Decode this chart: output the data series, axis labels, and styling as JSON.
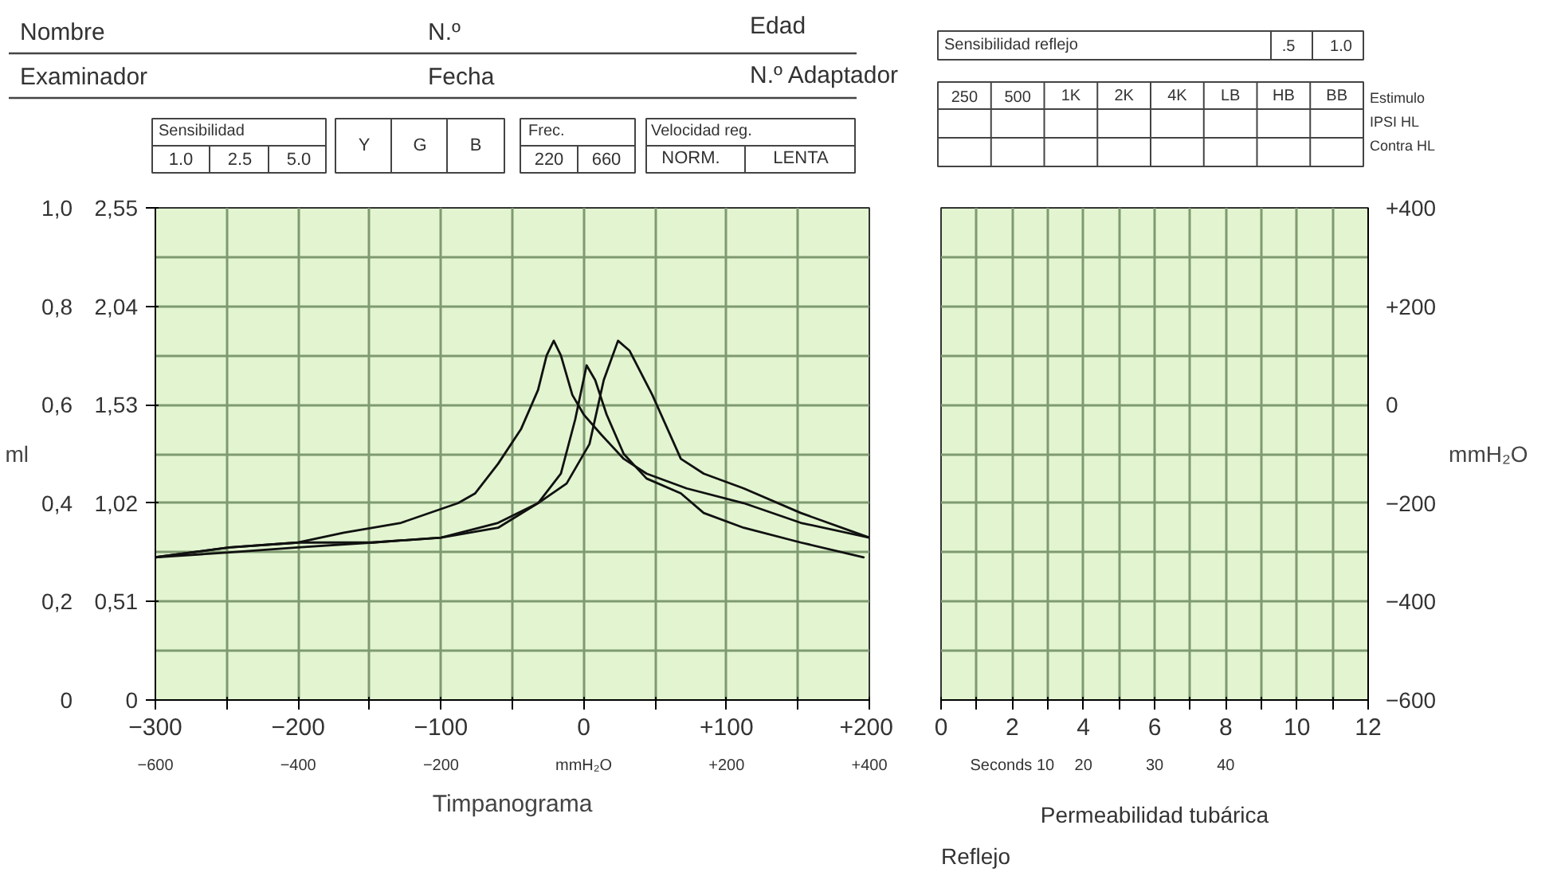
{
  "chart_data": [
    {
      "type": "line",
      "title": "Timpanograma",
      "ylabel": "ml",
      "annotations": [
        "Nombre",
        "N.º",
        "Edad",
        "Examinador",
        "Fecha",
        "N.º Adaptador",
        "Sensibilidad",
        "1.0",
        "2.5",
        "5.0",
        "Y",
        "G",
        "B",
        "Frec.",
        "220",
        "660",
        "Velocidad reg.",
        "NORM.",
        "LENTA"
      ],
      "xlim": [
        -300,
        200
      ],
      "xticks": [
        {
          "value": -300,
          "label": "−300"
        },
        {
          "value": -250,
          "label": null
        },
        {
          "value": -200,
          "label": "−200"
        },
        {
          "value": -150,
          "label": null
        },
        {
          "value": -100,
          "label": "−100"
        },
        {
          "value": -50,
          "label": null
        },
        0,
        {
          "value": 50,
          "label": null
        },
        {
          "value": 100,
          "label": "+100"
        },
        {
          "value": 150,
          "label": null
        },
        {
          "value": 200,
          "label": "+200"
        }
      ],
      "x2lim": [
        -600,
        400
      ],
      "x2ticks": [
        {
          "value": -600,
          "label": "−600"
        },
        {
          "value": -400,
          "label": "−400"
        },
        {
          "value": -200,
          "label": "−200"
        },
        {
          "value": 0,
          "label": "mmH₂O"
        },
        {
          "value": 200,
          "label": "+200"
        },
        {
          "value": 400,
          "label": "+400"
        }
      ],
      "ylim": [
        0,
        1.0
      ],
      "yticks": [
        0,
        {
          "value": 0.1,
          "label": null
        },
        {
          "value": 0.2,
          "label": "0,2"
        },
        {
          "value": 0.3,
          "label": null
        },
        {
          "value": 0.4,
          "label": "0,4"
        },
        {
          "value": 0.5,
          "label": null
        },
        {
          "value": 0.6,
          "label": "0,6"
        },
        {
          "value": 0.7,
          "label": null
        },
        {
          "value": 0.8,
          "label": "0,8"
        },
        {
          "value": 0.9,
          "label": null
        },
        {
          "value": 1.0,
          "label": "1,0"
        }
      ],
      "y2lim": [
        0,
        2.55
      ],
      "y2ticks": [
        0,
        {
          "value": 0.51,
          "label": "0,51"
        },
        {
          "value": 1.02,
          "label": "1,02"
        },
        {
          "value": 1.53,
          "label": "1,53"
        },
        {
          "value": 2.04,
          "label": "2,04"
        },
        {
          "value": 2.55,
          "label": "2,55"
        }
      ],
      "grid": true,
      "marker": "none",
      "line_style": "solid",
      "series": [
        {
          "color": "#111111",
          "x": [
            -300,
            -248,
            -200,
            -168,
            -128,
            -88,
            -76,
            -60,
            -44,
            -32,
            -26,
            -21,
            -16,
            -8,
            0,
            12,
            28,
            44,
            72,
            112,
            152,
            200
          ],
          "values": [
            0.29,
            0.31,
            0.32,
            0.34,
            0.36,
            0.4,
            0.42,
            0.48,
            0.55,
            0.63,
            0.7,
            0.73,
            0.7,
            0.62,
            0.58,
            0.54,
            0.49,
            0.46,
            0.43,
            0.4,
            0.36,
            0.33
          ]
        },
        {
          "color": "#111111",
          "x": [
            -300,
            -248,
            -200,
            -148,
            -100,
            -60,
            -32,
            -16,
            -6,
            2,
            8,
            16,
            28,
            44,
            68,
            84,
            112,
            152,
            196
          ],
          "values": [
            0.29,
            0.3,
            0.31,
            0.32,
            0.33,
            0.35,
            0.4,
            0.46,
            0.57,
            0.68,
            0.65,
            0.58,
            0.5,
            0.45,
            0.42,
            0.38,
            0.35,
            0.32,
            0.29
          ]
        },
        {
          "color": "#111111",
          "x": [
            -300,
            -248,
            -200,
            -148,
            -100,
            -60,
            -32,
            -12,
            4,
            14,
            24,
            32,
            48,
            68,
            84,
            112,
            152,
            200
          ],
          "values": [
            0.29,
            0.31,
            0.32,
            0.32,
            0.33,
            0.36,
            0.4,
            0.44,
            0.52,
            0.65,
            0.73,
            0.71,
            0.62,
            0.49,
            0.46,
            0.43,
            0.38,
            0.33
          ]
        }
      ]
    },
    {
      "type": "line",
      "title": "Reflejo",
      "xlabel": "Permeabilidad tubárica",
      "ylabel": "mmH₂O",
      "annotations": [
        "Sensibilidad reflejo",
        ".5",
        "1.0",
        "250",
        "500",
        "1K",
        "2K",
        "4K",
        "LB",
        "HB",
        "BB",
        "Estimulo",
        "IPSI HL",
        "Contra HL"
      ],
      "xlim": [
        0,
        12
      ],
      "xticks": [
        0,
        {
          "value": 1,
          "label": null
        },
        2,
        {
          "value": 3,
          "label": null
        },
        4,
        {
          "value": 5,
          "label": null
        },
        6,
        {
          "value": 7,
          "label": null
        },
        8,
        {
          "value": 9,
          "label": null
        },
        10,
        {
          "value": 11,
          "label": null
        },
        12
      ],
      "x2lim": [
        0,
        60
      ],
      "x2ticks": [
        {
          "value": 10,
          "label": "Seconds 10"
        },
        20,
        30,
        40
      ],
      "ylim": [
        -600,
        400
      ],
      "yticks": [
        {
          "value": -600,
          "label": "−600"
        },
        {
          "value": -500,
          "label": null
        },
        {
          "value": -400,
          "label": "−400"
        },
        {
          "value": -300,
          "label": null
        },
        {
          "value": -200,
          "label": "−200"
        },
        {
          "value": -100,
          "label": null
        },
        0,
        {
          "value": 100,
          "label": null
        },
        {
          "value": 200,
          "label": "+200"
        },
        {
          "value": 300,
          "label": null
        },
        {
          "value": 400,
          "label": "+400"
        }
      ],
      "grid": true
    }
  ]
}
